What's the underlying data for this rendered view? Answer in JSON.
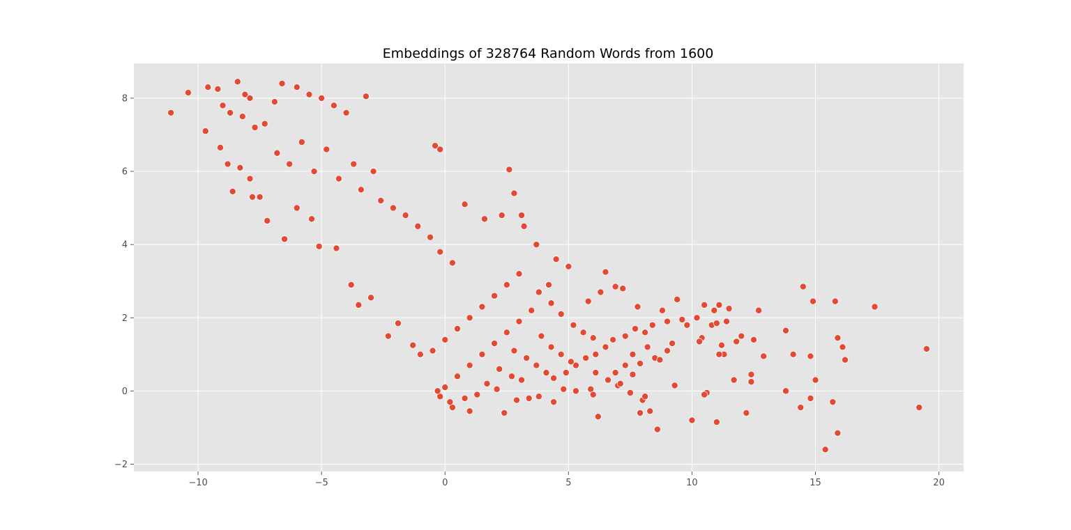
{
  "chart_data": {
    "type": "scatter",
    "title": "Embeddings of 328764 Random Words from 1600",
    "xlabel": "",
    "ylabel": "",
    "xlim": [
      -12.6,
      21.0
    ],
    "ylim": [
      -2.2,
      8.95
    ],
    "x_ticks": [
      -10,
      -5,
      0,
      5,
      10,
      15,
      20
    ],
    "y_ticks": [
      -2,
      0,
      2,
      4,
      6,
      8
    ],
    "x_tick_labels": [
      "−10",
      "−5",
      "0",
      "5",
      "10",
      "15",
      "20"
    ],
    "y_tick_labels": [
      "−2",
      "0",
      "2",
      "4",
      "6",
      "8"
    ],
    "grid": true,
    "legend": "none",
    "colors": {
      "point": "#E24A33",
      "point_edge": "#ffffff",
      "axes_bg": "#E5E5E5",
      "grid": "#ffffff"
    },
    "series": [
      {
        "points": [
          [
            -11.1,
            7.6
          ],
          [
            -10.4,
            8.15
          ],
          [
            -9.6,
            8.3
          ],
          [
            -9.2,
            8.25
          ],
          [
            -8.4,
            8.45
          ],
          [
            -8.1,
            8.1
          ],
          [
            -7.9,
            8.0
          ],
          [
            -9.7,
            7.1
          ],
          [
            -9.0,
            7.8
          ],
          [
            -8.7,
            7.6
          ],
          [
            -8.2,
            7.5
          ],
          [
            -7.7,
            7.2
          ],
          [
            -7.3,
            7.3
          ],
          [
            -6.9,
            7.9
          ],
          [
            -6.6,
            8.4
          ],
          [
            -6.0,
            8.3
          ],
          [
            -5.5,
            8.1
          ],
          [
            -5.0,
            8.0
          ],
          [
            -4.5,
            7.8
          ],
          [
            -4.0,
            7.6
          ],
          [
            -3.2,
            8.05
          ],
          [
            -9.1,
            6.65
          ],
          [
            -8.8,
            6.2
          ],
          [
            -8.3,
            6.1
          ],
          [
            -7.9,
            5.8
          ],
          [
            -7.5,
            5.3
          ],
          [
            -7.2,
            4.65
          ],
          [
            -6.5,
            4.15
          ],
          [
            -8.6,
            5.45
          ],
          [
            -7.8,
            5.3
          ],
          [
            -6.0,
            5.0
          ],
          [
            -5.4,
            4.7
          ],
          [
            -5.1,
            3.95
          ],
          [
            -4.4,
            3.9
          ],
          [
            -3.5,
            2.35
          ],
          [
            -3.8,
            2.9
          ],
          [
            -3.0,
            2.55
          ],
          [
            -2.3,
            1.5
          ],
          [
            -1.9,
            1.85
          ],
          [
            -1.3,
            1.25
          ],
          [
            -1.0,
            1.0
          ],
          [
            -6.8,
            6.5
          ],
          [
            -6.3,
            6.2
          ],
          [
            -5.8,
            6.8
          ],
          [
            -5.3,
            6.0
          ],
          [
            -4.8,
            6.6
          ],
          [
            -4.3,
            5.8
          ],
          [
            -3.7,
            6.2
          ],
          [
            -3.4,
            5.5
          ],
          [
            -2.9,
            6.0
          ],
          [
            -2.6,
            5.2
          ],
          [
            -2.1,
            5.0
          ],
          [
            -1.6,
            4.8
          ],
          [
            -1.1,
            4.5
          ],
          [
            -0.6,
            4.2
          ],
          [
            -0.2,
            3.8
          ],
          [
            0.3,
            3.5
          ],
          [
            -0.4,
            6.7
          ],
          [
            -0.2,
            6.6
          ],
          [
            0.8,
            5.1
          ],
          [
            1.6,
            4.7
          ],
          [
            2.3,
            4.8
          ],
          [
            2.6,
            6.05
          ],
          [
            2.8,
            5.4
          ],
          [
            3.1,
            4.8
          ],
          [
            3.2,
            4.5
          ],
          [
            3.7,
            4.0
          ],
          [
            4.5,
            3.6
          ],
          [
            5.0,
            3.4
          ],
          [
            6.5,
            3.25
          ],
          [
            7.2,
            2.8
          ],
          [
            6.9,
            2.85
          ],
          [
            4.2,
            2.9
          ],
          [
            5.8,
            2.45
          ],
          [
            6.3,
            2.7
          ],
          [
            7.8,
            2.3
          ],
          [
            8.8,
            2.2
          ],
          [
            9.4,
            2.5
          ],
          [
            10.5,
            2.35
          ],
          [
            11.1,
            2.35
          ],
          [
            11.5,
            2.25
          ],
          [
            12.7,
            2.2
          ],
          [
            10.9,
            2.2
          ],
          [
            10.2,
            2.0
          ],
          [
            10.8,
            1.8
          ],
          [
            11.0,
            1.85
          ],
          [
            11.4,
            1.9
          ],
          [
            12.0,
            1.5
          ],
          [
            11.8,
            1.35
          ],
          [
            12.5,
            1.4
          ],
          [
            9.8,
            1.8
          ],
          [
            9.6,
            1.95
          ],
          [
            10.4,
            1.45
          ],
          [
            10.3,
            1.35
          ],
          [
            11.2,
            1.25
          ],
          [
            11.3,
            1.0
          ],
          [
            11.1,
            1.0
          ],
          [
            12.9,
            0.95
          ],
          [
            13.8,
            1.65
          ],
          [
            14.1,
            1.0
          ],
          [
            14.8,
            0.95
          ],
          [
            14.5,
            2.85
          ],
          [
            14.9,
            2.45
          ],
          [
            15.8,
            2.45
          ],
          [
            17.4,
            2.3
          ],
          [
            15.9,
            1.45
          ],
          [
            16.1,
            1.2
          ],
          [
            16.2,
            0.85
          ],
          [
            19.5,
            1.15
          ],
          [
            15.0,
            0.3
          ],
          [
            13.8,
            0.0
          ],
          [
            14.4,
            -0.45
          ],
          [
            14.8,
            -0.2
          ],
          [
            15.7,
            -0.3
          ],
          [
            15.9,
            -1.15
          ],
          [
            15.4,
            -1.6
          ],
          [
            19.2,
            -0.45
          ],
          [
            12.4,
            0.45
          ],
          [
            12.4,
            0.25
          ],
          [
            11.7,
            0.3
          ],
          [
            12.2,
            -0.6
          ],
          [
            11.0,
            -0.85
          ],
          [
            10.0,
            -0.8
          ],
          [
            10.6,
            -0.05
          ],
          [
            10.5,
            -0.1
          ],
          [
            9.3,
            0.15
          ],
          [
            8.6,
            -1.05
          ],
          [
            8.3,
            -0.55
          ],
          [
            8.0,
            -0.25
          ],
          [
            8.1,
            -0.15
          ],
          [
            7.5,
            -0.05
          ],
          [
            7.9,
            -0.6
          ],
          [
            6.2,
            -0.7
          ],
          [
            7.0,
            0.15
          ],
          [
            7.1,
            0.2
          ],
          [
            6.1,
            0.5
          ],
          [
            5.9,
            0.05
          ],
          [
            6.0,
            -0.1
          ],
          [
            5.3,
            0.0
          ],
          [
            4.8,
            0.05
          ],
          [
            4.4,
            -0.3
          ],
          [
            3.8,
            -0.15
          ],
          [
            3.4,
            -0.2
          ],
          [
            2.9,
            -0.25
          ],
          [
            2.4,
            -0.6
          ],
          [
            1.0,
            -0.55
          ],
          [
            0.3,
            -0.45
          ],
          [
            8.5,
            0.9
          ],
          [
            8.7,
            0.85
          ],
          [
            9.0,
            1.1
          ],
          [
            9.2,
            1.3
          ],
          [
            9.0,
            1.9
          ],
          [
            8.4,
            1.8
          ],
          [
            8.1,
            1.6
          ],
          [
            7.7,
            1.7
          ],
          [
            7.3,
            1.5
          ],
          [
            6.8,
            1.4
          ],
          [
            6.5,
            1.2
          ],
          [
            6.1,
            1.0
          ],
          [
            5.7,
            0.9
          ],
          [
            5.3,
            0.7
          ],
          [
            4.9,
            0.5
          ],
          [
            4.4,
            0.35
          ],
          [
            7.6,
            1.0
          ],
          [
            7.3,
            0.7
          ],
          [
            6.9,
            0.5
          ],
          [
            6.6,
            0.3
          ],
          [
            8.2,
            1.2
          ],
          [
            7.9,
            0.75
          ],
          [
            7.6,
            0.45
          ],
          [
            3.0,
            3.2
          ],
          [
            2.5,
            2.9
          ],
          [
            2.0,
            2.6
          ],
          [
            1.5,
            2.3
          ],
          [
            1.0,
            2.0
          ],
          [
            0.5,
            1.7
          ],
          [
            0.0,
            1.4
          ],
          [
            -0.5,
            1.1
          ],
          [
            3.8,
            2.7
          ],
          [
            4.3,
            2.4
          ],
          [
            4.7,
            2.1
          ],
          [
            5.2,
            1.8
          ],
          [
            5.6,
            1.6
          ],
          [
            6.0,
            1.45
          ],
          [
            3.5,
            2.2
          ],
          [
            3.0,
            1.9
          ],
          [
            2.5,
            1.6
          ],
          [
            2.0,
            1.3
          ],
          [
            1.5,
            1.0
          ],
          [
            1.0,
            0.7
          ],
          [
            0.5,
            0.4
          ],
          [
            0.0,
            0.1
          ],
          [
            3.9,
            1.5
          ],
          [
            4.3,
            1.2
          ],
          [
            4.7,
            1.0
          ],
          [
            5.1,
            0.8
          ],
          [
            2.8,
            1.1
          ],
          [
            3.3,
            0.9
          ],
          [
            3.7,
            0.7
          ],
          [
            4.1,
            0.5
          ],
          [
            2.2,
            0.6
          ],
          [
            2.7,
            0.4
          ],
          [
            3.1,
            0.3
          ],
          [
            1.7,
            0.2
          ],
          [
            2.1,
            0.05
          ],
          [
            1.3,
            -0.1
          ],
          [
            0.8,
            -0.2
          ],
          [
            0.2,
            -0.3
          ],
          [
            -0.2,
            -0.15
          ],
          [
            -0.3,
            0.0
          ]
        ]
      }
    ]
  }
}
